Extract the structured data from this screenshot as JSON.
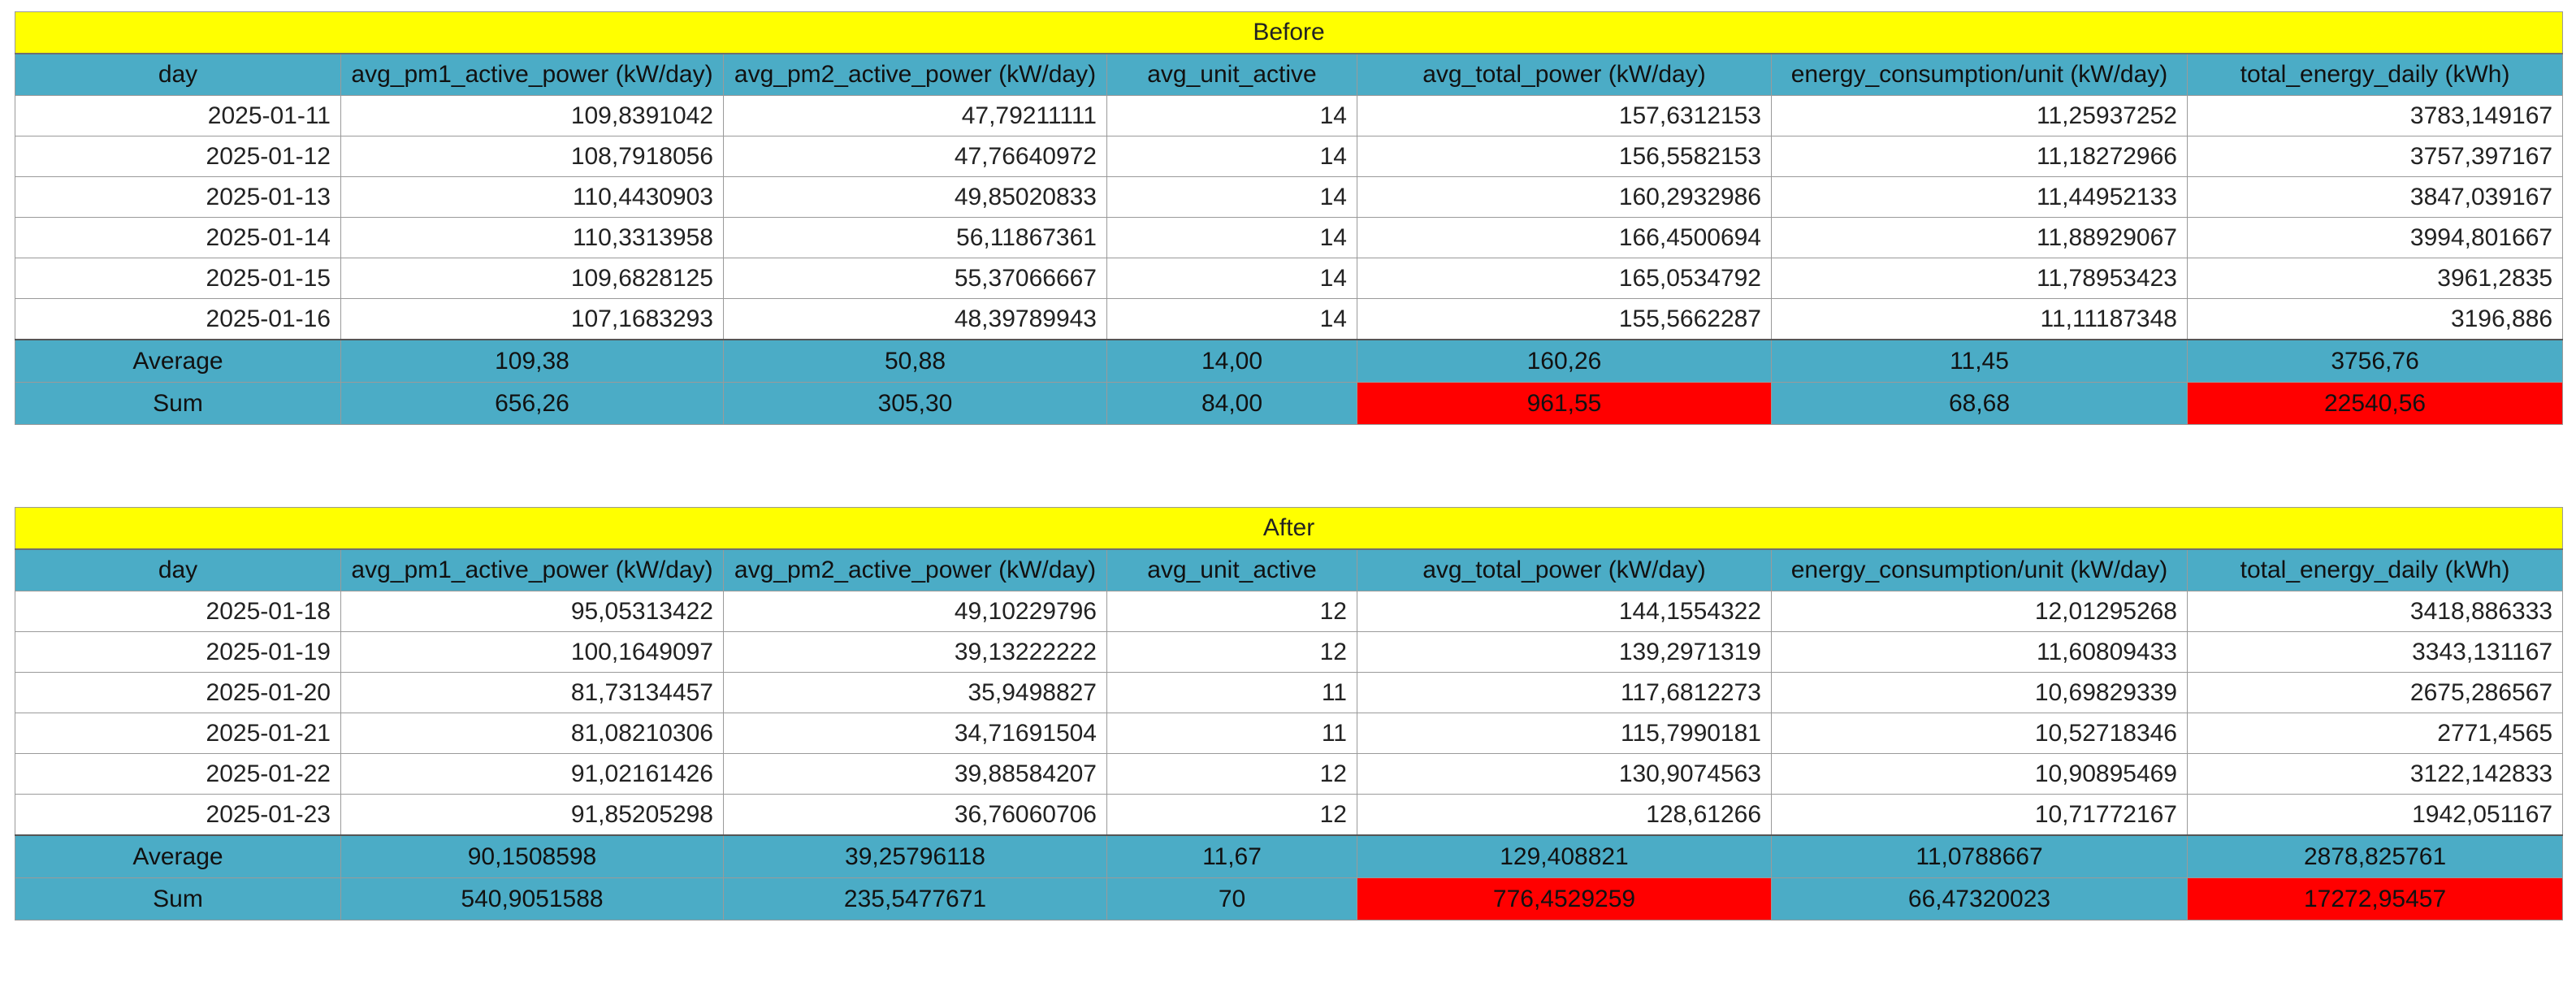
{
  "columns": [
    "day",
    "avg_pm1_active_power (kW/day)",
    "avg_pm2_active_power (kW/day)",
    "avg_unit_active",
    "avg_total_power (kW/day)",
    "energy_consumption/unit (kW/day)",
    "total_energy_daily (kWh)"
  ],
  "before": {
    "title": "Before",
    "rows": [
      [
        "2025-01-11",
        "109,8391042",
        "47,79211111",
        "14",
        "157,6312153",
        "11,25937252",
        "3783,149167"
      ],
      [
        "2025-01-12",
        "108,7918056",
        "47,76640972",
        "14",
        "156,5582153",
        "11,18272966",
        "3757,397167"
      ],
      [
        "2025-01-13",
        "110,4430903",
        "49,85020833",
        "14",
        "160,2932986",
        "11,44952133",
        "3847,039167"
      ],
      [
        "2025-01-14",
        "110,3313958",
        "56,11867361",
        "14",
        "166,4500694",
        "11,88929067",
        "3994,801667"
      ],
      [
        "2025-01-15",
        "109,6828125",
        "55,37066667",
        "14",
        "165,0534792",
        "11,78953423",
        "3961,2835"
      ],
      [
        "2025-01-16",
        "107,1683293",
        "48,39789943",
        "14",
        "155,5662287",
        "11,11187348",
        "3196,886"
      ]
    ],
    "average": [
      "Average",
      "109,38",
      "50,88",
      "14,00",
      "160,26",
      "11,45",
      "3756,76"
    ],
    "sum": [
      "Sum",
      "656,26",
      "305,30",
      "84,00",
      "961,55",
      "68,68",
      "22540,56"
    ]
  },
  "after": {
    "title": "After",
    "rows": [
      [
        "2025-01-18",
        "95,05313422",
        "49,10229796",
        "12",
        "144,1554322",
        "12,01295268",
        "3418,886333"
      ],
      [
        "2025-01-19",
        "100,1649097",
        "39,13222222",
        "12",
        "139,2971319",
        "11,60809433",
        "3343,131167"
      ],
      [
        "2025-01-20",
        "81,73134457",
        "35,9498827",
        "11",
        "117,6812273",
        "10,69829339",
        "2675,286567"
      ],
      [
        "2025-01-21",
        "81,08210306",
        "34,71691504",
        "11",
        "115,7990181",
        "10,52718346",
        "2771,4565"
      ],
      [
        "2025-01-22",
        "91,02161426",
        "39,88584207",
        "12",
        "130,9074563",
        "10,90895469",
        "3122,142833"
      ],
      [
        "2025-01-23",
        "91,85205298",
        "36,76060706",
        "12",
        "128,61266",
        "10,71772167",
        "1942,051167"
      ]
    ],
    "average": [
      "Average",
      "90,1508598",
      "39,25796118",
      "11,67",
      "129,408821",
      "11,0788667",
      "2878,825761"
    ],
    "sum": [
      "Sum",
      "540,9051588",
      "235,5477671",
      "70",
      "776,4529259",
      "66,47320023",
      "17272,95457"
    ]
  },
  "colors": {
    "title_fill": "#ffff00",
    "header_fill": "#4bacc6",
    "highlight_fill": "#ff0000"
  }
}
